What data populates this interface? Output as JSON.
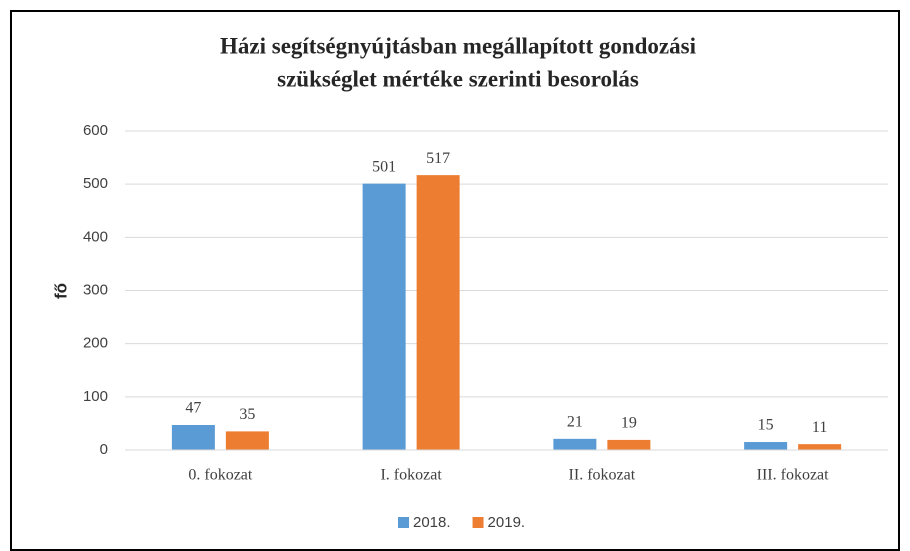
{
  "chart_data": {
    "type": "bar",
    "title": [
      "Házi segítségnyújtásban megállapított gondozási",
      "szükséglet mértéke szerinti besorolás"
    ],
    "y_label": "fő",
    "categories": [
      "0. fokozat",
      "I. fokozat",
      "II. fokozat",
      "III. fokozat"
    ],
    "series": [
      {
        "name": "2018.",
        "color": "#5b9bd5",
        "values": [
          47,
          501,
          21,
          15
        ]
      },
      {
        "name": "2019.",
        "color": "#ed7d31",
        "values": [
          35,
          517,
          19,
          11
        ]
      }
    ],
    "ylim": [
      0,
      600
    ],
    "yticks": [
      0,
      100,
      200,
      300,
      400,
      500,
      600
    ],
    "grid": true,
    "legend": "bottom"
  }
}
